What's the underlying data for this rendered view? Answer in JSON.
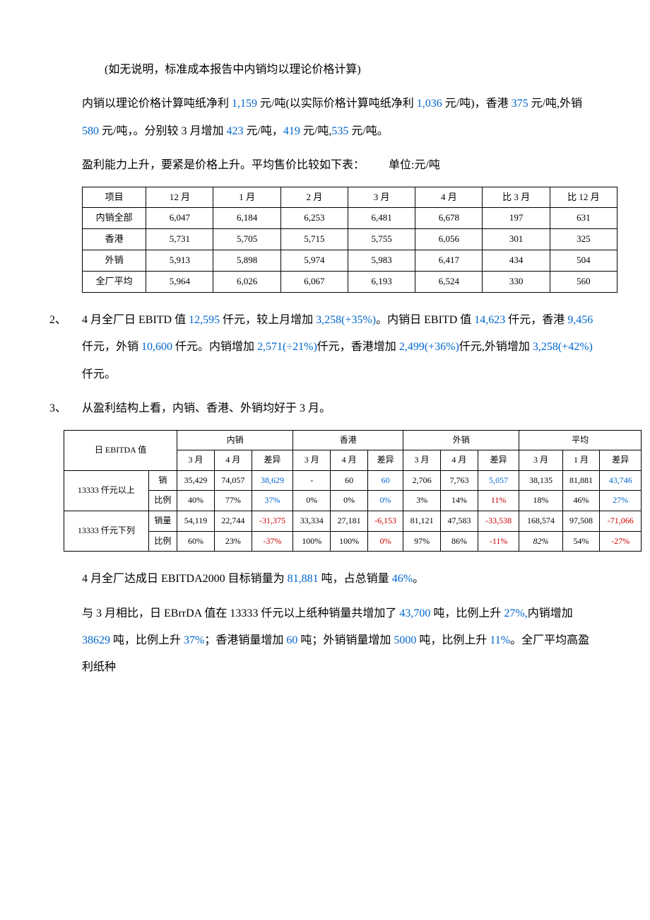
{
  "p_note": "(如无说明，标准成本报告中内销均以理论价格计算)",
  "p_profit_1a": "内销以理论价格计算吨纸净利 ",
  "v_1159": "1,159",
  "p_profit_1b": " 元/吨(以实际价格计算吨纸净利 ",
  "v_1036": "1,036",
  "p_profit_1c": " 元/吨)，香港 ",
  "v_375": "375",
  "p_profit_1d": " 元/吨,外销 ",
  "v_580": "580",
  "p_profit_1e": " 元/吨，。分别较 3 月增加 ",
  "v_423": "423",
  "p_profit_1f": " 元/吨，",
  "v_419": "419",
  "p_profit_1g": " 元/吨,",
  "v_535": "535",
  "p_profit_1h": " 元/吨。",
  "p_rise": "盈利能力上升，要紧是价格上升。平均售价比较如下表：",
  "unit_label": "单位:元/吨",
  "t1": {
    "headers": [
      "项目",
      "12 月",
      "1 月",
      "2 月",
      "3 月",
      "4 月",
      "比 3 月",
      "比 12 月"
    ],
    "rows": [
      [
        "内销全部",
        "6,047",
        "6,184",
        "6,253",
        "6,481",
        "6,678",
        "197",
        "631"
      ],
      [
        "香港",
        "5,731",
        "5,705",
        "5,715",
        "5,755",
        "6,056",
        "301",
        "325"
      ],
      [
        "外销",
        "5,913",
        "5,898",
        "5,974",
        "5,983",
        "6,417",
        "434",
        "504"
      ],
      [
        "全厂平均",
        "5,964",
        "6,026",
        "6,067",
        "6,193",
        "6,524",
        "330",
        "560"
      ]
    ]
  },
  "item2_marker": "2、",
  "p2a": "4 月全厂日 EBITD 值 ",
  "v_12595": "12,595",
  "p2b": " 仟元，较上月增加 ",
  "v_3258a": "3,258(+35%)",
  "p2c": "。内销日 EBITD 值 ",
  "v_14623": "14,623",
  "p2d": " 仟元，香港 ",
  "v_9456": "9,456",
  "p2e": " 仟元，外销 ",
  "v_10600": "10,600",
  "p2f": " 仟元。内销增加 ",
  "v_2571": "2,571(÷21%)",
  "p2g": "仟元，香港增加 ",
  "v_2499": "2,499(+36%)",
  "p2h": "仟元,外销增加 ",
  "v_3258b": "3,258(+42%)",
  "p2i": "仟元。",
  "item3_marker": "3、",
  "p3": "从盈利结构上看，内销、香港、外销均好于 3 月。",
  "t2": {
    "corner": "日 EBITDA 值",
    "groups": [
      "内销",
      "香港",
      "外销",
      "平均"
    ],
    "sub": [
      "3 月",
      "4 月",
      "差异"
    ],
    "avg_sub": [
      "3 月",
      "1 月",
      "差异"
    ],
    "row_grp_a": "13333 仟元以上",
    "row_grp_b": "13333 仟元下列",
    "lab_xiao": "销",
    "lab_bili": "比例",
    "lab_xiaoliang": "销量",
    "rows": {
      "a_xiao": [
        "35,429",
        "74,057",
        "38,629",
        "-",
        "60",
        "60",
        "2,706",
        "7,763",
        "5,057",
        "38,135",
        "81,881",
        "43,746"
      ],
      "a_bili": [
        "40%",
        "77%",
        "37%",
        "0%",
        "0%",
        "0%",
        "3%",
        "14%",
        "11%",
        "18%",
        "46%",
        "27%"
      ],
      "b_xl": [
        "54,119",
        "22,744",
        "-31,375",
        "33,334",
        "27,181",
        "-6,153",
        "81,121",
        "47,583",
        "-33,538",
        "168,574",
        "97,508",
        "-71,066"
      ],
      "b_bili": [
        "60%",
        "23%",
        "-37%",
        "100%",
        "100%",
        "0%",
        "97%",
        "86%",
        "-11%",
        "82%",
        "54%",
        "-27%"
      ]
    },
    "diff_color": {
      "a_xiao": [
        "blue",
        "",
        "blue",
        "blue",
        "",
        "blue"
      ],
      "a_bili": [
        "blue",
        "",
        "blue",
        "red",
        "",
        "blue"
      ],
      "b_xl": [
        "red",
        "",
        "red",
        "red",
        "",
        "red"
      ],
      "b_bili": [
        "red",
        "",
        "red",
        "red",
        "",
        "red"
      ]
    }
  },
  "p4a": "4 月全厂达成日 EBITDA2000 目标销量为 ",
  "v_81881": "81,881",
  "p4b": " 吨，占总销量 ",
  "v_46pct": "46%",
  "p4c": "。",
  "p5a": "与 3 月相比，日 EBrrDA 值在 13333 仟元以上纸种销量共增加了 ",
  "v_43700": "43,700",
  "p5b": " 吨，比例上升 ",
  "v_27pct": "27%,",
  "p5c": "内销增加 ",
  "v_38629": "38629",
  "p5d": " 吨，比例上升 ",
  "v_37pct": "37%",
  "p5e": "；香港销量增加 ",
  "v_60": "60",
  "p5f": " 吨；外销销量增加 ",
  "v_5000": "5000",
  "p5g": " 吨，比例上升 ",
  "v_11pct": "11%",
  "p5h": "。全厂平均高盈利纸种"
}
